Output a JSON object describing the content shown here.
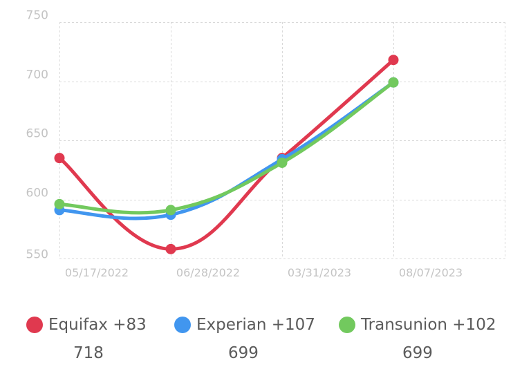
{
  "chart_data": {
    "type": "line",
    "categories": [
      "05/17/2022",
      "06/28/2022",
      "03/31/2023",
      "08/07/2023"
    ],
    "ylim": [
      550,
      750
    ],
    "yticks": [
      "750",
      "700",
      "650",
      "600",
      "550"
    ],
    "grid": true,
    "legend_position": "bottom",
    "series": [
      {
        "name": "Equifax +83",
        "color": "#e0394f",
        "values": [
          635,
          558,
          635,
          718
        ]
      },
      {
        "name": "Experian +107",
        "color": "#4196ef",
        "values": [
          591,
          587,
          634,
          699
        ]
      },
      {
        "name": "Transunion +102",
        "color": "#72c95e",
        "values": [
          596,
          591,
          631,
          699
        ]
      }
    ]
  },
  "legend": [
    {
      "label": "Equifax +83",
      "value": "718",
      "color": "#e0394f"
    },
    {
      "label": "Experian +107",
      "value": "699",
      "color": "#4196ef"
    },
    {
      "label": "Transunion +102",
      "value": "699",
      "color": "#72c95e"
    }
  ]
}
